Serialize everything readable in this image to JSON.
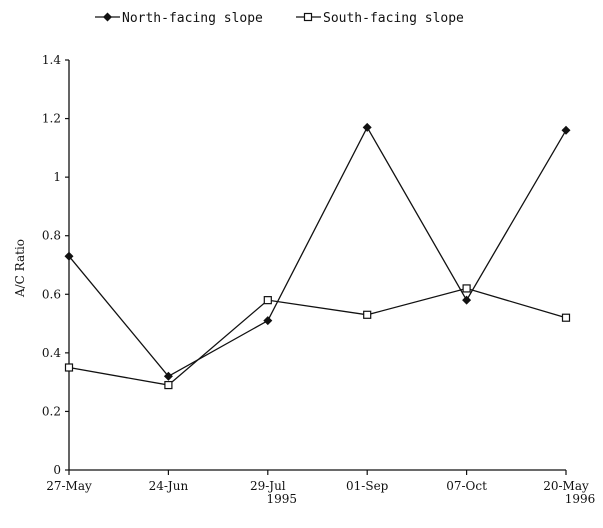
{
  "chart_data": {
    "type": "line",
    "title": "",
    "xlabel": "",
    "ylabel": "A/C Ratio",
    "categories": [
      "27-May",
      "24-Jun",
      "29-Jul",
      "01-Sep",
      "07-Oct",
      "20-May"
    ],
    "year_labels": [
      {
        "after_category": "29-Jul",
        "text": "1995"
      },
      {
        "after_category": "20-May",
        "text": "1996"
      }
    ],
    "yticks": [
      "0",
      "0.2",
      "0.4",
      "0.6",
      "0.8",
      "1",
      "1.2",
      "1.4"
    ],
    "ylim": [
      0,
      1.4
    ],
    "grid": false,
    "legend_position": "top",
    "series": [
      {
        "name": "North-facing slope",
        "marker": "filled-diamond",
        "values": [
          0.73,
          0.32,
          0.51,
          1.17,
          0.58,
          1.16
        ]
      },
      {
        "name": "South-facing slope",
        "marker": "open-square",
        "values": [
          0.35,
          0.29,
          0.58,
          0.53,
          0.62,
          0.52
        ]
      }
    ]
  }
}
